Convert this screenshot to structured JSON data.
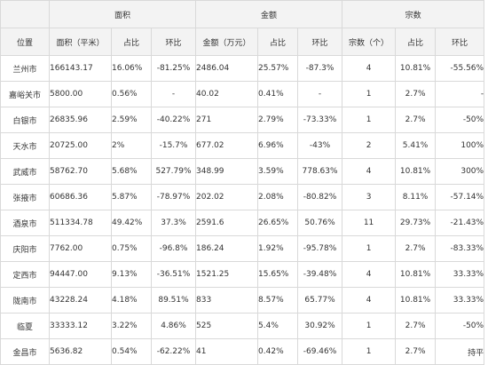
{
  "groups": {
    "area": "面积",
    "amount": "金额",
    "count": "宗数"
  },
  "headers": [
    "位置",
    "面积（平米）",
    "占比",
    "环比",
    "金额（万元）",
    "占比",
    "环比",
    "宗数（个）",
    "占比",
    "环比"
  ],
  "rows": [
    [
      "兰州市",
      "166143.17",
      "16.06%",
      "-81.25%",
      "2486.04",
      "25.57%",
      "-87.3%",
      "4",
      "10.81%",
      "-55.56%"
    ],
    [
      "嘉峪关市",
      "5800.00",
      "0.56%",
      "-",
      "40.02",
      "0.41%",
      "-",
      "1",
      "2.7%",
      "-"
    ],
    [
      "白银市",
      "26835.96",
      "2.59%",
      "-40.22%",
      "271",
      "2.79%",
      "-73.33%",
      "1",
      "2.7%",
      "-50%"
    ],
    [
      "天水市",
      "20725.00",
      "2%",
      "-15.7%",
      "677.02",
      "6.96%",
      "-43%",
      "2",
      "5.41%",
      "100%"
    ],
    [
      "武威市",
      "58762.70",
      "5.68%",
      "527.79%",
      "348.99",
      "3.59%",
      "778.63%",
      "4",
      "10.81%",
      "300%"
    ],
    [
      "张掖市",
      "60686.36",
      "5.87%",
      "-78.97%",
      "202.02",
      "2.08%",
      "-80.82%",
      "3",
      "8.11%",
      "-57.14%"
    ],
    [
      "酒泉市",
      "511334.78",
      "49.42%",
      "37.3%",
      "2591.6",
      "26.65%",
      "50.76%",
      "11",
      "29.73%",
      "-21.43%"
    ],
    [
      "庆阳市",
      "7762.00",
      "0.75%",
      "-96.8%",
      "186.24",
      "1.92%",
      "-95.78%",
      "1",
      "2.7%",
      "-83.33%"
    ],
    [
      "定西市",
      "94447.00",
      "9.13%",
      "-36.51%",
      "1521.25",
      "15.65%",
      "-39.48%",
      "4",
      "10.81%",
      "33.33%"
    ],
    [
      "陇南市",
      "43228.24",
      "4.18%",
      "89.51%",
      "833",
      "8.57%",
      "65.77%",
      "4",
      "10.81%",
      "33.33%"
    ],
    [
      "临夏",
      "33333.12",
      "3.22%",
      "4.86%",
      "525",
      "5.4%",
      "30.92%",
      "1",
      "2.7%",
      "-50%"
    ],
    [
      "金昌市",
      "5636.82",
      "0.54%",
      "-62.22%",
      "41",
      "0.42%",
      "-69.46%",
      "1",
      "2.7%",
      "持平"
    ]
  ]
}
